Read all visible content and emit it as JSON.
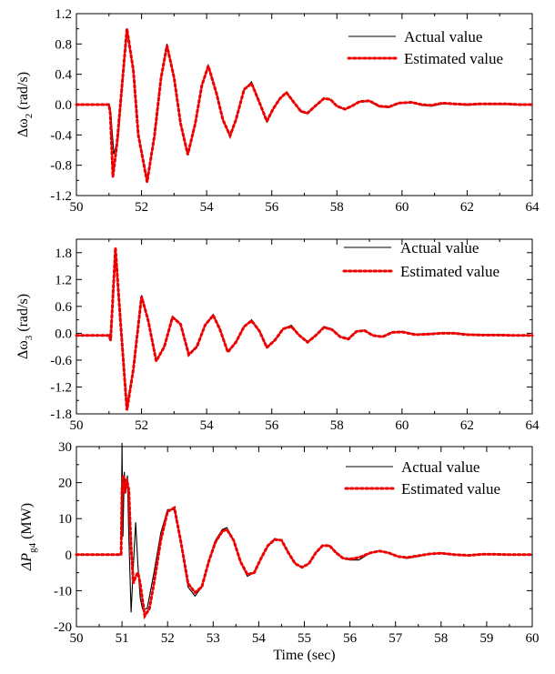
{
  "chart_data": [
    {
      "type": "line",
      "ylabel_parts": [
        "Δω",
        "2",
        " (rad/s)"
      ],
      "xlabel": "",
      "xlim": [
        50,
        64
      ],
      "ylim": [
        -1.2,
        1.2
      ],
      "xticks": [
        50,
        52,
        54,
        56,
        58,
        60,
        62,
        64
      ],
      "yticks": [
        -1.2,
        -0.8,
        -0.4,
        0.0,
        0.4,
        0.8,
        1.2
      ],
      "ytick_labels": [
        "-1.2",
        "-0.8",
        "-0.4",
        "0.0",
        "0.4",
        "0.8",
        "1.2"
      ],
      "legend": "top-right",
      "series": [
        {
          "name": "Actual value",
          "color": "#000000",
          "x": [
            50,
            51.0,
            51.05,
            51.15,
            51.28,
            51.55,
            51.75,
            51.9,
            52.17,
            52.4,
            52.6,
            52.78,
            53.0,
            53.2,
            53.42,
            53.65,
            53.85,
            54.05,
            54.3,
            54.5,
            54.72,
            54.9,
            55.15,
            55.38,
            55.6,
            55.85,
            56.05,
            56.25,
            56.45,
            56.68,
            56.9,
            57.1,
            57.33,
            57.6,
            57.8,
            58.0,
            58.25,
            58.45,
            58.7,
            59.0,
            59.3,
            59.6,
            59.9,
            60.3,
            60.6,
            60.9,
            61.25,
            61.6,
            62.0,
            62.4,
            62.8,
            63.2,
            63.6,
            64.0
          ],
          "y": [
            0.0,
            0.0,
            -0.1,
            -0.65,
            -0.45,
            1.0,
            0.45,
            -0.4,
            -1.0,
            -0.4,
            0.35,
            0.8,
            0.35,
            -0.25,
            -0.67,
            -0.25,
            0.25,
            0.52,
            0.15,
            -0.2,
            -0.42,
            -0.2,
            0.2,
            0.3,
            0.05,
            -0.23,
            -0.05,
            0.08,
            0.16,
            0.03,
            -0.1,
            -0.12,
            -0.02,
            0.08,
            0.06,
            -0.02,
            -0.07,
            -0.02,
            0.04,
            0.04,
            -0.03,
            -0.04,
            0.02,
            0.03,
            -0.01,
            -0.02,
            0.01,
            0.01,
            -0.01,
            0.01,
            0.0,
            0.0,
            0.0,
            0.0
          ]
        },
        {
          "name": "Estimated value",
          "color": "#ee0000",
          "x": [
            50,
            51.0,
            51.04,
            51.12,
            51.25,
            51.55,
            51.75,
            51.9,
            52.17,
            52.4,
            52.6,
            52.78,
            53.0,
            53.2,
            53.42,
            53.65,
            53.85,
            54.05,
            54.3,
            54.5,
            54.72,
            54.9,
            55.15,
            55.38,
            55.6,
            55.85,
            56.05,
            56.25,
            56.45,
            56.68,
            56.9,
            57.1,
            57.33,
            57.6,
            57.8,
            58.0,
            58.25,
            58.45,
            58.7,
            59.0,
            59.3,
            59.6,
            59.9,
            60.3,
            60.6,
            60.9,
            61.25,
            61.6,
            62.0,
            62.4,
            62.8,
            63.2,
            63.6,
            64.0
          ],
          "y": [
            0.0,
            0.0,
            -0.12,
            -0.95,
            -0.5,
            1.0,
            0.45,
            -0.4,
            -1.02,
            -0.4,
            0.35,
            0.78,
            0.35,
            -0.25,
            -0.66,
            -0.25,
            0.25,
            0.51,
            0.15,
            -0.2,
            -0.41,
            -0.2,
            0.2,
            0.28,
            0.05,
            -0.22,
            -0.05,
            0.08,
            0.16,
            0.03,
            -0.09,
            -0.11,
            -0.02,
            0.08,
            0.07,
            -0.02,
            -0.06,
            -0.02,
            0.04,
            0.05,
            -0.02,
            -0.03,
            0.02,
            0.03,
            0.0,
            -0.01,
            0.02,
            0.01,
            0.0,
            0.01,
            0.01,
            0.01,
            0.0,
            0.0
          ]
        }
      ]
    },
    {
      "type": "line",
      "ylabel_parts": [
        "Δω",
        "3",
        " (rad/s)"
      ],
      "xlabel": "",
      "xlim": [
        50,
        64
      ],
      "ylim": [
        -1.8,
        2.1
      ],
      "xticks": [
        50,
        52,
        54,
        56,
        58,
        60,
        62,
        64
      ],
      "yticks": [
        -1.8,
        -1.2,
        -0.6,
        0.0,
        0.6,
        1.2,
        1.8
      ],
      "ytick_labels": [
        "-1.8",
        "-1.2",
        "-0.6",
        "0.0",
        "0.6",
        "1.2",
        "1.8"
      ],
      "legend": "top-right",
      "series": [
        {
          "name": "Actual value",
          "color": "#000000",
          "x": [
            50,
            51.0,
            51.05,
            51.2,
            51.35,
            51.55,
            51.75,
            52.0,
            52.2,
            52.45,
            52.7,
            52.95,
            53.2,
            53.45,
            53.7,
            53.95,
            54.2,
            54.4,
            54.65,
            54.9,
            55.15,
            55.38,
            55.62,
            55.85,
            56.1,
            56.35,
            56.6,
            56.85,
            57.1,
            57.35,
            57.6,
            57.85,
            58.1,
            58.35,
            58.6,
            58.85,
            59.1,
            59.4,
            59.7,
            60.0,
            60.4,
            60.8,
            61.2,
            61.6,
            62.0,
            62.5,
            63.0,
            63.5,
            64.0
          ],
          "y": [
            -0.05,
            -0.05,
            0.0,
            1.75,
            0.3,
            -1.6,
            -0.8,
            0.85,
            0.3,
            -0.6,
            -0.3,
            0.38,
            0.2,
            -0.45,
            -0.3,
            0.18,
            0.42,
            0.1,
            -0.4,
            -0.2,
            0.15,
            0.3,
            0.05,
            -0.3,
            -0.15,
            0.1,
            0.18,
            -0.05,
            -0.18,
            -0.05,
            0.15,
            0.1,
            -0.08,
            -0.12,
            0.05,
            0.07,
            -0.05,
            -0.07,
            0.02,
            0.04,
            -0.02,
            -0.01,
            0.01,
            0.01,
            -0.02,
            -0.03,
            -0.03,
            -0.04,
            -0.04
          ]
        },
        {
          "name": "Estimated value",
          "color": "#ee0000",
          "x": [
            50,
            51.0,
            51.05,
            51.2,
            51.35,
            51.55,
            51.75,
            52.0,
            52.2,
            52.45,
            52.7,
            52.95,
            53.2,
            53.45,
            53.7,
            53.95,
            54.2,
            54.4,
            54.65,
            54.9,
            55.15,
            55.38,
            55.62,
            55.85,
            56.1,
            56.35,
            56.6,
            56.85,
            57.1,
            57.35,
            57.6,
            57.85,
            58.1,
            58.35,
            58.6,
            58.85,
            59.1,
            59.4,
            59.7,
            60.0,
            60.4,
            60.8,
            61.2,
            61.6,
            62.0,
            62.5,
            63.0,
            63.5,
            64.0
          ],
          "y": [
            -0.05,
            -0.05,
            -0.15,
            1.9,
            0.3,
            -1.72,
            -0.8,
            0.82,
            0.3,
            -0.62,
            -0.3,
            0.36,
            0.2,
            -0.48,
            -0.3,
            0.18,
            0.4,
            0.1,
            -0.42,
            -0.2,
            0.15,
            0.28,
            0.05,
            -0.32,
            -0.15,
            0.1,
            0.15,
            -0.05,
            -0.2,
            -0.05,
            0.13,
            0.08,
            -0.08,
            -0.13,
            0.04,
            0.06,
            -0.05,
            -0.08,
            0.02,
            0.03,
            -0.03,
            -0.02,
            0.0,
            0.0,
            -0.03,
            -0.04,
            -0.04,
            -0.05,
            -0.05
          ]
        }
      ]
    },
    {
      "type": "line",
      "ylabel_parts": [
        "ΔP",
        "g4",
        " (MW)"
      ],
      "xlabel": "Time (sec)",
      "xlim": [
        50,
        60
      ],
      "ylim": [
        -20,
        30
      ],
      "xticks": [
        50,
        51,
        52,
        53,
        54,
        55,
        56,
        57,
        58,
        59,
        60
      ],
      "yticks": [
        -20,
        -10,
        0,
        10,
        20,
        30
      ],
      "ytick_labels": [
        "-20",
        "-10",
        "0",
        "10",
        "20",
        "30"
      ],
      "legend": "top-right",
      "series": [
        {
          "name": "Actual value",
          "color": "#000000",
          "x": [
            50,
            50.98,
            51.0,
            51.02,
            51.05,
            51.08,
            51.12,
            51.15,
            51.2,
            51.25,
            51.3,
            51.35,
            51.4,
            51.45,
            51.55,
            51.7,
            51.85,
            52.0,
            52.15,
            52.3,
            52.45,
            52.6,
            52.75,
            52.9,
            53.05,
            53.2,
            53.3,
            53.45,
            53.6,
            53.75,
            53.9,
            54.05,
            54.2,
            54.35,
            54.5,
            54.65,
            54.8,
            54.95,
            55.1,
            55.25,
            55.4,
            55.55,
            55.7,
            55.85,
            56.0,
            56.2,
            56.45,
            56.65,
            56.85,
            57.05,
            57.25,
            57.5,
            57.75,
            58.0,
            58.3,
            58.6,
            58.9,
            59.2,
            59.5,
            60.0
          ],
          "y": [
            0,
            0,
            31,
            5,
            23,
            17,
            22,
            5,
            -16,
            -3,
            9,
            -3,
            -12,
            -15,
            -15,
            -5,
            6,
            12.5,
            12.5,
            3,
            -9,
            -11.5,
            -9,
            -2,
            4,
            7,
            7.5,
            4,
            -2,
            -6,
            -5,
            -1,
            2.5,
            4.5,
            4,
            0.5,
            -2.5,
            -3.5,
            -2.5,
            0.5,
            2.5,
            2.5,
            0.5,
            -1,
            -1.5,
            -1.5,
            0.5,
            1,
            0.5,
            -0.5,
            -1,
            -0.5,
            0.2,
            0.5,
            0,
            -0.3,
            0.2,
            0.2,
            0,
            0
          ]
        },
        {
          "name": "Estimated value",
          "color": "#ee0000",
          "x": [
            50,
            50.98,
            51.0,
            51.03,
            51.06,
            51.1,
            51.15,
            51.2,
            51.25,
            51.3,
            51.35,
            51.4,
            51.5,
            51.6,
            51.7,
            51.85,
            52.0,
            52.15,
            52.3,
            52.45,
            52.6,
            52.75,
            52.9,
            53.05,
            53.2,
            53.3,
            53.45,
            53.6,
            53.75,
            53.9,
            54.05,
            54.2,
            54.35,
            54.5,
            54.65,
            54.8,
            54.95,
            55.1,
            55.25,
            55.4,
            55.55,
            55.7,
            55.85,
            56.0,
            56.2,
            56.45,
            56.65,
            56.85,
            57.05,
            57.25,
            57.5,
            57.75,
            58.0,
            58.3,
            58.6,
            58.9,
            59.2,
            59.5,
            60.0
          ],
          "y": [
            0,
            0,
            18,
            22,
            17,
            21,
            18,
            2,
            -8,
            -6,
            -5,
            -8,
            -17,
            -15,
            -8,
            4,
            12,
            13,
            3,
            -8,
            -10.5,
            -9,
            -2,
            3.5,
            6.5,
            7,
            4,
            -2,
            -5.5,
            -5,
            -1,
            2.5,
            4.2,
            4,
            0.5,
            -2.5,
            -3.5,
            -2.5,
            0.5,
            2.5,
            2.5,
            0.5,
            -1,
            -1.2,
            -0.8,
            0.5,
            1,
            0.5,
            -0.5,
            -0.8,
            -0.3,
            0.2,
            0.4,
            0,
            -0.2,
            0.1,
            0.1,
            0,
            0
          ]
        }
      ]
    }
  ]
}
